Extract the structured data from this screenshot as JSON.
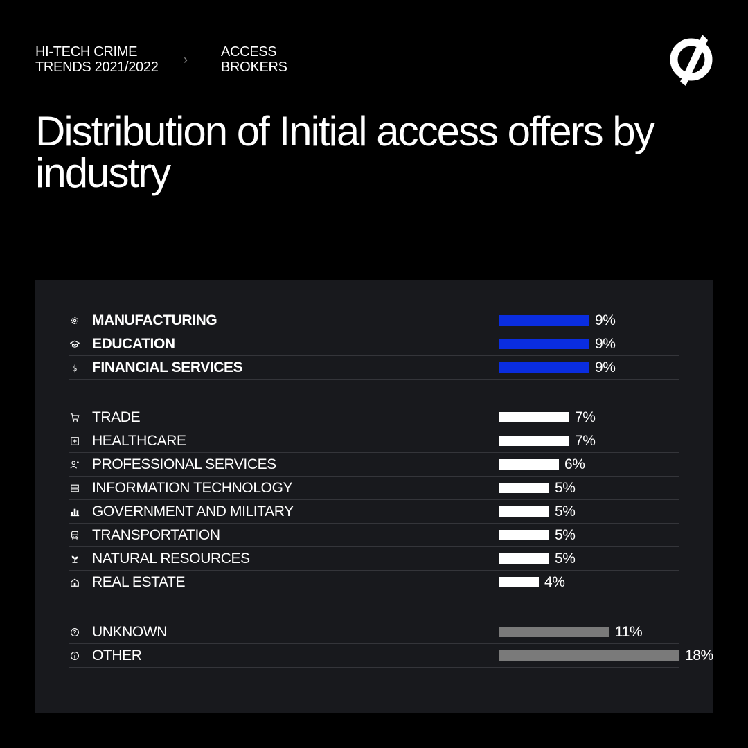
{
  "breadcrumb": {
    "report": "HI-TECH CRIME TRENDS 2021/2022",
    "separator": "›",
    "section": "ACCESS BROKERS"
  },
  "title": "Distribution of Initial access offers by industry",
  "colors": {
    "background": "#000000",
    "panel": "#18191d",
    "top_group": "#0a2de0",
    "middle_group": "#ffffff",
    "bottom_group": "#7a7a7a"
  },
  "chart_data": {
    "type": "bar",
    "orientation": "horizontal",
    "unit": "%",
    "groups": [
      {
        "color": "#0a2de0",
        "emphasis": "bold",
        "items": [
          {
            "icon": "gear-icon",
            "category": "MANUFACTURING",
            "value": 9,
            "label": "9%"
          },
          {
            "icon": "graduation-cap-icon",
            "category": "EDUCATION",
            "value": 9,
            "label": "9%"
          },
          {
            "icon": "dollar-icon",
            "category": "FINANCIAL SERVICES",
            "value": 9,
            "label": "9%"
          }
        ]
      },
      {
        "color": "#ffffff",
        "emphasis": "normal",
        "items": [
          {
            "icon": "cart-icon",
            "category": "TRADE",
            "value": 7,
            "label": "7%"
          },
          {
            "icon": "medical-cross-icon",
            "category": "HEALTHCARE",
            "value": 7,
            "label": "7%"
          },
          {
            "icon": "professional-person-icon",
            "category": "PROFESSIONAL SERVICES",
            "value": 6,
            "label": "6%"
          },
          {
            "icon": "server-icon",
            "category": "INFORMATION TECHNOLOGY",
            "value": 5,
            "label": "5%"
          },
          {
            "icon": "government-building-icon",
            "category": "GOVERNMENT AND MILITARY",
            "value": 5,
            "label": "5%"
          },
          {
            "icon": "bus-icon",
            "category": "TRANSPORTATION",
            "value": 5,
            "label": "5%"
          },
          {
            "icon": "plant-icon",
            "category": "NATURAL RESOURCES",
            "value": 5,
            "label": "5%"
          },
          {
            "icon": "house-icon",
            "category": "REAL ESTATE",
            "value": 4,
            "label": "4%"
          }
        ]
      },
      {
        "color": "#7a7a7a",
        "emphasis": "normal",
        "items": [
          {
            "icon": "question-icon",
            "category": "UNKNOWN",
            "value": 11,
            "label": "11%"
          },
          {
            "icon": "info-icon",
            "category": "OTHER",
            "value": 18,
            "label": "18%"
          }
        ]
      }
    ]
  }
}
